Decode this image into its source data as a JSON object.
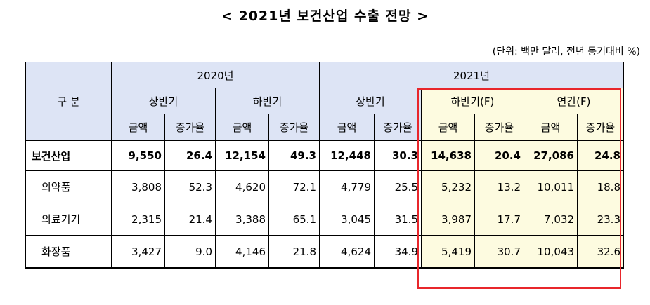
{
  "title": "< 2021년 보건산업 수출 전망 >",
  "unit_note": "(단위: 백만 달러, 전년 동기대비 %)",
  "header": {
    "category": "구 분",
    "year_2020": "2020년",
    "year_2021": "2021년",
    "h1_2020": "상반기",
    "h2_2020": "하반기",
    "h1_2021": "상반기",
    "h2_2021": "하반기(F)",
    "annual_2021": "연간(F)",
    "amount": "금액",
    "growth": "증가율"
  },
  "rows": [
    {
      "label": "보건산업",
      "v": [
        "9,550",
        "26.4",
        "12,154",
        "49.3",
        "12,448",
        "30.3",
        "14,638",
        "20.4",
        "27,086",
        "24.8"
      ]
    },
    {
      "label": "의약품",
      "v": [
        "3,808",
        "52.3",
        "4,620",
        "72.1",
        "4,779",
        "25.5",
        "5,232",
        "13.2",
        "10,011",
        "18.8"
      ]
    },
    {
      "label": "의료기기",
      "v": [
        "2,315",
        "21.4",
        "3,388",
        "65.1",
        "3,045",
        "31.5",
        "3,987",
        "17.7",
        "7,032",
        "23.3"
      ]
    },
    {
      "label": "화장품",
      "v": [
        "3,427",
        "9.0",
        "4,146",
        "21.8",
        "4,624",
        "34.9",
        "5,419",
        "30.7",
        "10,043",
        "32.6"
      ]
    }
  ],
  "colors": {
    "header_bg": "#dde4f5",
    "forecast_bg": "#fdfbe0",
    "forecast_outline": "#e8262b"
  }
}
